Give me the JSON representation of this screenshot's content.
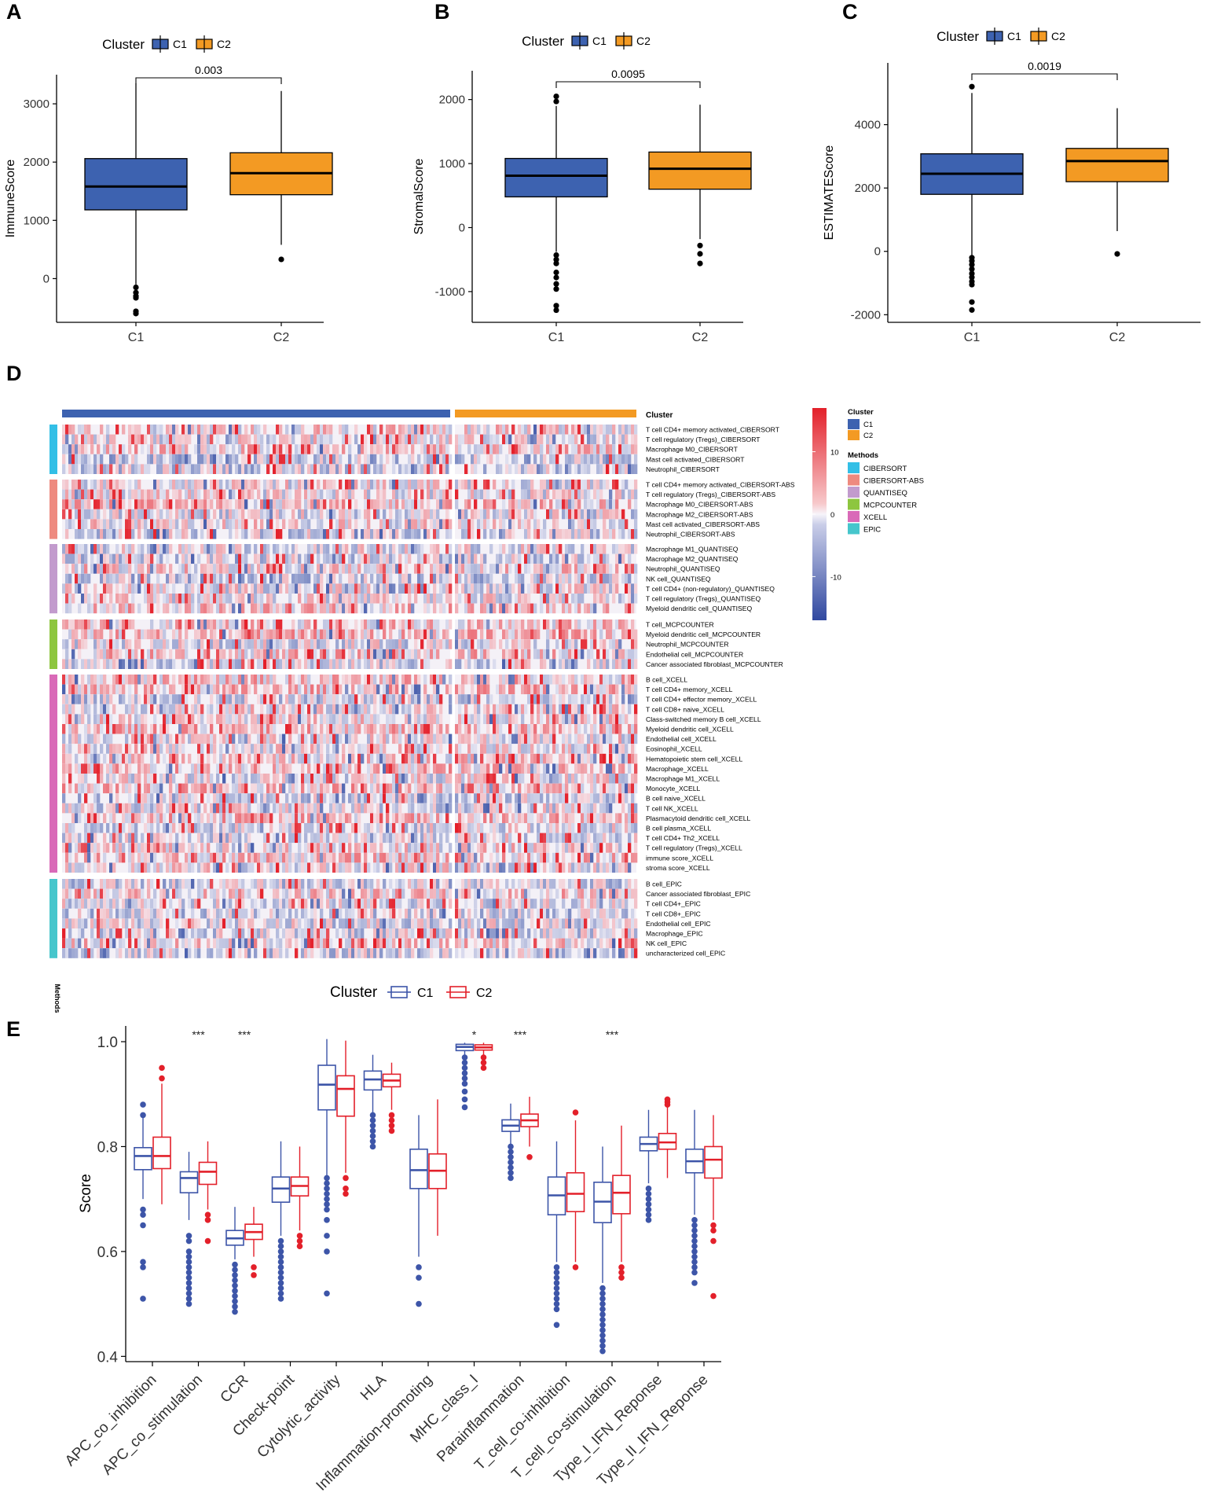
{
  "chart_data": [
    {
      "id": "A",
      "type": "box",
      "panel_label": "A",
      "legend_title": "Cluster",
      "legend": [
        "C1",
        "C2"
      ],
      "colors": [
        "#3d62b0",
        "#f39a23"
      ],
      "ylabel": "ImmuneScore",
      "xlabel": "",
      "categories": [
        "C1",
        "C2"
      ],
      "ylim": [
        -750,
        3500
      ],
      "yticks": [
        0,
        1000,
        2000,
        3000
      ],
      "pvalue": "0.003",
      "boxes": [
        {
          "q1": 1180,
          "median": 1580,
          "q3": 2060,
          "lo": -100,
          "hi": 3350,
          "outliers": [
            -150,
            -240,
            -300,
            -330,
            -560,
            -600
          ]
        },
        {
          "q1": 1440,
          "median": 1810,
          "q3": 2160,
          "lo": 580,
          "hi": 3220,
          "outliers": [
            330
          ]
        }
      ]
    },
    {
      "id": "B",
      "type": "box",
      "panel_label": "B",
      "legend_title": "Cluster",
      "legend": [
        "C1",
        "C2"
      ],
      "colors": [
        "#3d62b0",
        "#f39a23"
      ],
      "ylabel": "StromalScore",
      "xlabel": "",
      "categories": [
        "C1",
        "C2"
      ],
      "ylim": [
        -1480,
        2450
      ],
      "yticks": [
        -1000,
        0,
        1000,
        2000
      ],
      "pvalue": "0.0095",
      "boxes": [
        {
          "q1": 480,
          "median": 810,
          "q3": 1080,
          "lo": -380,
          "hi": 1900,
          "outliers": [
            2050,
            1970,
            -430,
            -500,
            -560,
            -700,
            -780,
            -880,
            -960,
            -1220,
            -1290
          ]
        },
        {
          "q1": 600,
          "median": 920,
          "q3": 1180,
          "lo": -180,
          "hi": 1920,
          "outliers": [
            -280,
            -410,
            -560
          ]
        }
      ]
    },
    {
      "id": "C",
      "type": "box",
      "panel_label": "C",
      "legend_title": "Cluster",
      "legend": [
        "C1",
        "C2"
      ],
      "colors": [
        "#3d62b0",
        "#f39a23"
      ],
      "ylabel": "ESTIMATEScore",
      "xlabel": "",
      "categories": [
        "C1",
        "C2"
      ],
      "ylim": [
        -2240,
        5950
      ],
      "yticks": [
        -2000,
        0,
        2000,
        4000
      ],
      "pvalue": "0.0019",
      "boxes": [
        {
          "q1": 1800,
          "median": 2450,
          "q3": 3080,
          "lo": -150,
          "hi": 5000,
          "outliers": [
            5200,
            -200,
            -300,
            -420,
            -560,
            -700,
            -820,
            -950,
            -1050,
            -1600,
            -1850
          ]
        },
        {
          "q1": 2200,
          "median": 2850,
          "q3": 3250,
          "lo": 640,
          "hi": 4520,
          "outliers": [
            -80
          ]
        }
      ]
    },
    {
      "id": "D",
      "type": "heatmap",
      "panel_label": "D",
      "annotation_title": "Cluster",
      "methods_label": "Methods",
      "colorbar": {
        "ticks": [
          "10",
          "0",
          "-10"
        ],
        "min": -17,
        "max": 17
      },
      "legend_cluster": {
        "title": "Cluster",
        "items": [
          {
            "label": "C1",
            "color": "#3d62b0"
          },
          {
            "label": "C2",
            "color": "#f39a23"
          }
        ]
      },
      "legend_methods": {
        "title": "Methods",
        "items": [
          {
            "label": "CIBERSORT",
            "color": "#33bfe6"
          },
          {
            "label": "CIBERSORT-ABS",
            "color": "#ee8a7f"
          },
          {
            "label": "QUANTISEQ",
            "color": "#c29bcd"
          },
          {
            "label": "MCPCOUNTER",
            "color": "#8dc63f"
          },
          {
            "label": "XCELL",
            "color": "#d96ab8"
          },
          {
            "label": "EPIC",
            "color": "#46c6cc"
          }
        ]
      },
      "groups": [
        {
          "method": "CIBERSORT",
          "rows": [
            "T cell CD4+ memory activated_CIBERSORT",
            "T cell regulatory (Tregs)_CIBERSORT",
            "Macrophage M0_CIBERSORT",
            "Mast cell activated_CIBERSORT",
            "Neutrophil_CIBERSORT"
          ]
        },
        {
          "method": "CIBERSORT-ABS",
          "rows": [
            "T cell CD4+ memory activated_CIBERSORT-ABS",
            "T cell regulatory (Tregs)_CIBERSORT-ABS",
            "Macrophage M0_CIBERSORT-ABS",
            "Macrophage M2_CIBERSORT-ABS",
            "Mast cell activated_CIBERSORT-ABS",
            "Neutrophil_CIBERSORT-ABS"
          ]
        },
        {
          "method": "QUANTISEQ",
          "rows": [
            "Macrophage M1_QUANTISEQ",
            "Macrophage M2_QUANTISEQ",
            "Neutrophil_QUANTISEQ",
            "NK cell_QUANTISEQ",
            "T cell CD4+ (non-regulatory)_QUANTISEQ",
            "T cell regulatory (Tregs)_QUANTISEQ",
            "Myeloid dendritic cell_QUANTISEQ"
          ]
        },
        {
          "method": "MCPCOUNTER",
          "rows": [
            "T cell_MCPCOUNTER",
            "Myeloid dendritic cell_MCPCOUNTER",
            "Neutrophil_MCPCOUNTER",
            "Endothelial cell_MCPCOUNTER",
            "Cancer associated fibroblast_MCPCOUNTER"
          ]
        },
        {
          "method": "XCELL",
          "rows": [
            "B cell_XCELL",
            "T cell CD4+ memory_XCELL",
            "T cell CD4+ effector memory_XCELL",
            "T cell CD8+ naive_XCELL",
            "Class-switched memory B cell_XCELL",
            "Myeloid dendritic cell_XCELL",
            "Endothelial cell_XCELL",
            "Eosinophil_XCELL",
            "Hematopoietic stem cell_XCELL",
            "Macrophage_XCELL",
            "Macrophage M1_XCELL",
            "Monocyte_XCELL",
            "B cell naive_XCELL",
            "T cell NK_XCELL",
            "Plasmacytoid dendritic cell_XCELL",
            "B cell plasma_XCELL",
            "T cell CD4+ Th2_XCELL",
            "T cell regulatory (Tregs)_XCELL",
            "immune score_XCELL",
            "stroma score_XCELL"
          ]
        },
        {
          "method": "EPIC",
          "rows": [
            "B cell_EPIC",
            "Cancer associated fibroblast_EPIC",
            "T cell CD4+_EPIC",
            "T cell CD8+_EPIC",
            "Endothelial cell_EPIC",
            "Macrophage_EPIC",
            "NK cell_EPIC",
            "uncharacterized cell_EPIC"
          ]
        }
      ]
    },
    {
      "id": "E",
      "type": "box",
      "panel_label": "E",
      "legend_title": "Cluster",
      "legend": [
        "C1",
        "C2"
      ],
      "colors": [
        "#3d55a8",
        "#e3202a"
      ],
      "ylabel": "Score",
      "xlabel": "",
      "ylim": [
        0.39,
        1.03
      ],
      "yticks": [
        0.4,
        0.6,
        0.8,
        1.0
      ],
      "ytick_labels": [
        "0.4",
        "0.6",
        "0.8",
        "1.0"
      ],
      "categories": [
        "APC_co_inhibition",
        "APC_co_stimulation",
        "CCR",
        "Check-point",
        "Cytolytic_activity",
        "HLA",
        "Inflammation-promoting",
        "MHC_class_I",
        "Parainflammation",
        "T_cell_co-inhibition",
        "T_cell_co-stimulation",
        "Type_I_IFN_Reponse",
        "Type_II_IFN_Reponse"
      ],
      "significance": [
        "",
        "***",
        "***",
        "",
        "",
        "",
        "",
        "*",
        "***",
        "",
        "***",
        "",
        ""
      ],
      "series": [
        {
          "name": "C1",
          "boxes": [
            {
              "q1": 0.756,
              "median": 0.782,
              "q3": 0.798,
              "lo": 0.7,
              "hi": 0.865,
              "outliers": [
                0.88,
                0.86,
                0.68,
                0.67,
                0.65,
                0.58,
                0.57,
                0.51
              ]
            },
            {
              "q1": 0.712,
              "median": 0.74,
              "q3": 0.752,
              "lo": 0.66,
              "hi": 0.79,
              "outliers": [
                0.63,
                0.62,
                0.6,
                0.59,
                0.58,
                0.57,
                0.56,
                0.55,
                0.54,
                0.53,
                0.52,
                0.51,
                0.5
              ]
            },
            {
              "q1": 0.612,
              "median": 0.625,
              "q3": 0.64,
              "lo": 0.585,
              "hi": 0.685,
              "outliers": [
                0.575,
                0.565,
                0.555,
                0.545,
                0.535,
                0.525,
                0.515,
                0.505,
                0.495,
                0.485
              ]
            },
            {
              "q1": 0.694,
              "median": 0.72,
              "q3": 0.742,
              "lo": 0.63,
              "hi": 0.81,
              "outliers": [
                0.62,
                0.61,
                0.6,
                0.59,
                0.58,
                0.57,
                0.56,
                0.55,
                0.54,
                0.53,
                0.52,
                0.51
              ]
            },
            {
              "q1": 0.87,
              "median": 0.918,
              "q3": 0.955,
              "lo": 0.745,
              "hi": 1.005,
              "outliers": [
                0.74,
                0.73,
                0.72,
                0.71,
                0.7,
                0.69,
                0.68,
                0.66,
                0.63,
                0.6,
                0.52
              ]
            },
            {
              "q1": 0.908,
              "median": 0.928,
              "q3": 0.944,
              "lo": 0.865,
              "hi": 0.975,
              "outliers": [
                0.86,
                0.85,
                0.84,
                0.83,
                0.82,
                0.81,
                0.8
              ]
            },
            {
              "q1": 0.72,
              "median": 0.755,
              "q3": 0.795,
              "lo": 0.59,
              "hi": 0.86,
              "outliers": [
                0.57,
                0.55,
                0.5
              ]
            },
            {
              "q1": 0.983,
              "median": 0.99,
              "q3": 0.995,
              "lo": 0.975,
              "hi": 0.998,
              "outliers": [
                0.97,
                0.96,
                0.95,
                0.94,
                0.93,
                0.92,
                0.905,
                0.89,
                0.875
              ]
            },
            {
              "q1": 0.829,
              "median": 0.84,
              "q3": 0.851,
              "lo": 0.805,
              "hi": 0.882,
              "outliers": [
                0.8,
                0.79,
                0.78,
                0.77,
                0.76,
                0.75,
                0.74
              ]
            },
            {
              "q1": 0.67,
              "median": 0.707,
              "q3": 0.742,
              "lo": 0.58,
              "hi": 0.81,
              "outliers": [
                0.57,
                0.56,
                0.55,
                0.54,
                0.53,
                0.52,
                0.51,
                0.5,
                0.49,
                0.46
              ]
            },
            {
              "q1": 0.655,
              "median": 0.695,
              "q3": 0.732,
              "lo": 0.54,
              "hi": 0.8,
              "outliers": [
                0.53,
                0.52,
                0.51,
                0.5,
                0.49,
                0.48,
                0.47,
                0.46,
                0.45,
                0.44,
                0.43,
                0.42,
                0.41
              ]
            },
            {
              "q1": 0.792,
              "median": 0.805,
              "q3": 0.818,
              "lo": 0.73,
              "hi": 0.87,
              "outliers": [
                0.72,
                0.71,
                0.7,
                0.69,
                0.68,
                0.67,
                0.66
              ]
            },
            {
              "q1": 0.75,
              "median": 0.772,
              "q3": 0.795,
              "lo": 0.67,
              "hi": 0.87,
              "outliers": [
                0.66,
                0.65,
                0.64,
                0.63,
                0.62,
                0.61,
                0.6,
                0.59,
                0.58,
                0.57,
                0.56,
                0.54
              ]
            }
          ]
        },
        {
          "name": "C2",
          "boxes": [
            {
              "q1": 0.758,
              "median": 0.782,
              "q3": 0.818,
              "lo": 0.69,
              "hi": 0.92,
              "outliers": [
                0.95,
                0.93
              ]
            },
            {
              "q1": 0.728,
              "median": 0.752,
              "q3": 0.77,
              "lo": 0.68,
              "hi": 0.81,
              "outliers": [
                0.67,
                0.66,
                0.62
              ]
            },
            {
              "q1": 0.623,
              "median": 0.637,
              "q3": 0.652,
              "lo": 0.59,
              "hi": 0.685,
              "outliers": [
                0.57,
                0.555
              ]
            },
            {
              "q1": 0.706,
              "median": 0.725,
              "q3": 0.742,
              "lo": 0.64,
              "hi": 0.8,
              "outliers": [
                0.63,
                0.62,
                0.61
              ]
            },
            {
              "q1": 0.858,
              "median": 0.91,
              "q3": 0.935,
              "lo": 0.75,
              "hi": 1.002,
              "outliers": [
                0.74,
                0.72,
                0.71
              ]
            },
            {
              "q1": 0.914,
              "median": 0.926,
              "q3": 0.938,
              "lo": 0.87,
              "hi": 0.96,
              "outliers": [
                0.86,
                0.85,
                0.84,
                0.83
              ]
            },
            {
              "q1": 0.72,
              "median": 0.754,
              "q3": 0.786,
              "lo": 0.63,
              "hi": 0.89,
              "outliers": []
            },
            {
              "q1": 0.984,
              "median": 0.989,
              "q3": 0.994,
              "lo": 0.975,
              "hi": 0.998,
              "outliers": [
                0.97,
                0.96,
                0.95
              ]
            },
            {
              "q1": 0.838,
              "median": 0.85,
              "q3": 0.862,
              "lo": 0.8,
              "hi": 0.895,
              "outliers": [
                0.78
              ]
            },
            {
              "q1": 0.676,
              "median": 0.71,
              "q3": 0.75,
              "lo": 0.58,
              "hi": 0.85,
              "outliers": [
                0.865,
                0.57
              ]
            },
            {
              "q1": 0.672,
              "median": 0.712,
              "q3": 0.745,
              "lo": 0.58,
              "hi": 0.84,
              "outliers": [
                0.57,
                0.56,
                0.55
              ]
            },
            {
              "q1": 0.795,
              "median": 0.808,
              "q3": 0.825,
              "lo": 0.74,
              "hi": 0.875,
              "outliers": [
                0.89,
                0.885,
                0.88
              ]
            },
            {
              "q1": 0.74,
              "median": 0.775,
              "q3": 0.8,
              "lo": 0.66,
              "hi": 0.86,
              "outliers": [
                0.65,
                0.64,
                0.62,
                0.515
              ]
            }
          ]
        }
      ]
    }
  ]
}
